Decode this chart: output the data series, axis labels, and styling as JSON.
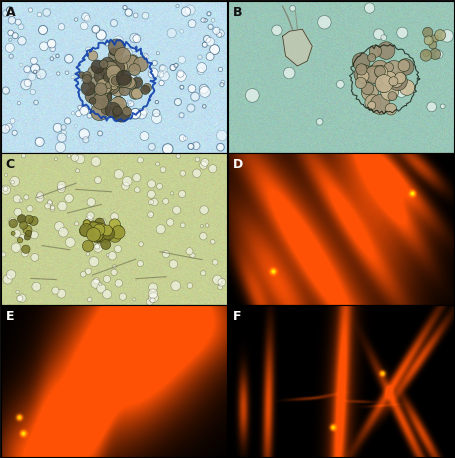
{
  "panels": [
    "A",
    "B",
    "C",
    "D",
    "E",
    "F"
  ],
  "grid_rows": 3,
  "grid_cols": 2,
  "bg_A": [
    0.75,
    0.88,
    0.94
  ],
  "bg_B": [
    0.6,
    0.78,
    0.72
  ],
  "bg_C": [
    0.78,
    0.82,
    0.58
  ],
  "label_fontsize": 9,
  "label_fontweight": "bold"
}
